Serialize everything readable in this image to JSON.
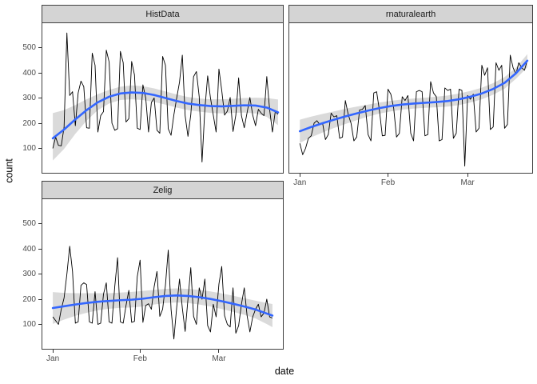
{
  "figure": {
    "xlabel": "date",
    "ylabel": "count",
    "background": "#ffffff",
    "colors": {
      "series_line": "#000000",
      "smooth_line": "#3366ff",
      "ribbon_fill": "#9e9e9e",
      "ribbon_opacity": 0.38,
      "panel_border": "#404040",
      "strip_fill": "#d4d4d4",
      "tick_text": "#4d4d4d"
    }
  },
  "chart_data": [
    {
      "type": "line",
      "facet": "HistData",
      "axes": {
        "x": false,
        "y": true
      },
      "x_start_day": 0,
      "values": [
        100,
        145,
        112,
        110,
        185,
        558,
        310,
        325,
        190,
        320,
        367,
        345,
        182,
        180,
        478,
        430,
        165,
        230,
        246,
        490,
        443,
        200,
        172,
        178,
        485,
        440,
        205,
        218,
        445,
        392,
        180,
        175,
        352,
        300,
        165,
        282,
        300,
        172,
        160,
        465,
        430,
        178,
        152,
        233,
        300,
        363,
        470,
        230,
        148,
        233,
        385,
        405,
        305,
        46,
        255,
        388,
        300,
        232,
        165,
        415,
        330,
        232,
        248,
        302,
        167,
        232,
        380,
        230,
        182,
        242,
        302,
        232,
        190,
        255,
        240,
        230,
        385,
        255,
        165,
        246,
        235
      ],
      "smooth": {
        "days": [
          0,
          4,
          8,
          12,
          16,
          20,
          24,
          28,
          32,
          36,
          40,
          44,
          48,
          52,
          56,
          60,
          64,
          68,
          72,
          76,
          80
        ],
        "fit": [
          140,
          175,
          215,
          252,
          283,
          305,
          318,
          322,
          320,
          312,
          300,
          288,
          278,
          272,
          268,
          267,
          269,
          271,
          270,
          262,
          243
        ],
        "upper": [
          240,
          252,
          272,
          295,
          315,
          332,
          345,
          350,
          347,
          338,
          326,
          314,
          304,
          298,
          295,
          295,
          297,
          300,
          301,
          300,
          294
        ],
        "lower": [
          52,
          98,
          158,
          210,
          252,
          278,
          292,
          295,
          292,
          284,
          274,
          262,
          252,
          246,
          241,
          239,
          241,
          242,
          239,
          225,
          192
        ]
      }
    },
    {
      "type": "line",
      "facet": "rnaturalearth",
      "axes": {
        "x": true,
        "y": false
      },
      "x_start_day": 0,
      "values": [
        120,
        75,
        100,
        140,
        150,
        200,
        210,
        195,
        200,
        135,
        155,
        240,
        225,
        230,
        140,
        145,
        290,
        235,
        200,
        130,
        145,
        252,
        255,
        270,
        155,
        130,
        320,
        325,
        250,
        150,
        152,
        335,
        315,
        260,
        145,
        160,
        305,
        290,
        310,
        160,
        130,
        325,
        330,
        325,
        150,
        155,
        365,
        320,
        305,
        130,
        135,
        340,
        330,
        335,
        140,
        160,
        335,
        330,
        30,
        310,
        295,
        315,
        165,
        180,
        430,
        390,
        420,
        175,
        185,
        440,
        410,
        430,
        180,
        195,
        470,
        420,
        395,
        440,
        420,
        410,
        450
      ],
      "smooth": {
        "days": [
          0,
          4,
          8,
          12,
          16,
          20,
          24,
          28,
          32,
          36,
          40,
          44,
          48,
          52,
          56,
          60,
          64,
          68,
          72,
          76,
          80
        ],
        "fit": [
          168,
          185,
          200,
          214,
          227,
          239,
          250,
          260,
          268,
          274,
          278,
          281,
          284,
          288,
          295,
          305,
          318,
          336,
          360,
          398,
          448
        ],
        "upper": [
          214,
          226,
          237,
          247,
          257,
          266,
          274,
          282,
          289,
          294,
          298,
          301,
          305,
          310,
          318,
          328,
          341,
          359,
          383,
          420,
          474
        ],
        "lower": [
          122,
          144,
          163,
          181,
          197,
          212,
          226,
          238,
          247,
          254,
          258,
          261,
          263,
          266,
          272,
          282,
          295,
          313,
          337,
          376,
          422
        ]
      }
    },
    {
      "type": "line",
      "facet": "Zelig",
      "axes": {
        "x": true,
        "y": true
      },
      "x_start_day": 0,
      "values": [
        130,
        115,
        100,
        160,
        205,
        300,
        410,
        310,
        105,
        110,
        255,
        265,
        258,
        110,
        105,
        230,
        100,
        105,
        220,
        265,
        110,
        105,
        250,
        365,
        110,
        105,
        175,
        235,
        108,
        112,
        290,
        355,
        108,
        175,
        182,
        160,
        250,
        310,
        132,
        160,
        255,
        395,
        160,
        42,
        168,
        280,
        165,
        72,
        200,
        325,
        132,
        100,
        245,
        200,
        280,
        95,
        70,
        180,
        130,
        260,
        330,
        135,
        100,
        90,
        245,
        65,
        95,
        180,
        245,
        135,
        70,
        130,
        160,
        180,
        130,
        145,
        200,
        130,
        125
      ],
      "smooth": {
        "days": [
          0,
          4,
          8,
          12,
          16,
          20,
          24,
          28,
          32,
          36,
          40,
          44,
          48,
          52,
          56,
          60,
          64,
          68,
          72,
          76,
          78
        ],
        "fit": [
          165,
          172,
          179,
          185,
          190,
          193,
          196,
          198,
          202,
          208,
          213,
          215,
          213,
          208,
          201,
          192,
          182,
          171,
          159,
          143,
          135
        ],
        "upper": [
          228,
          225,
          224,
          224,
          224,
          224,
          226,
          229,
          233,
          237,
          241,
          243,
          241,
          237,
          231,
          223,
          214,
          204,
          194,
          185,
          181
        ],
        "lower": [
          102,
          119,
          134,
          146,
          156,
          162,
          166,
          167,
          171,
          179,
          185,
          187,
          185,
          179,
          171,
          161,
          150,
          138,
          124,
          101,
          89
        ]
      }
    }
  ],
  "axes": {
    "x_domain_days": [
      -4,
      82
    ],
    "y_domain": [
      0,
      600
    ],
    "x_ticks": [
      {
        "day": 0,
        "label": "Jan"
      },
      {
        "day": 31,
        "label": "Feb"
      },
      {
        "day": 59,
        "label": "Mar"
      }
    ],
    "y_ticks": [
      {
        "value": 100,
        "label": "100"
      },
      {
        "value": 200,
        "label": "200"
      },
      {
        "value": 300,
        "label": "300"
      },
      {
        "value": 400,
        "label": "400"
      },
      {
        "value": 500,
        "label": "500"
      }
    ],
    "grid": false,
    "legend": "none"
  }
}
